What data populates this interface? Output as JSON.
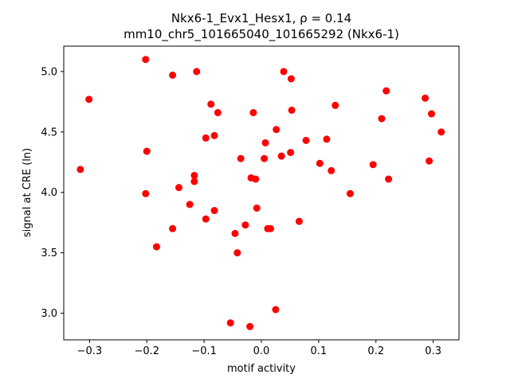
{
  "chart_data": {
    "type": "scatter",
    "title_line1": "Nkx6-1_Evx1_Hesx1, ρ = 0.14",
    "title_line2": "mm10_chr5_101665040_101665292 (Nkx6-1)",
    "xlabel": "motif activity",
    "ylabel": "signal at CRE (ln)",
    "xlim": [
      -0.345,
      0.345
    ],
    "ylim": [
      2.78,
      5.21
    ],
    "xticks": [
      -0.3,
      -0.2,
      -0.1,
      0.0,
      0.1,
      0.2,
      0.3
    ],
    "xtick_labels": [
      "−0.3",
      "−0.2",
      "−0.1",
      "0.0",
      "0.1",
      "0.2",
      "0.3"
    ],
    "yticks": [
      3.0,
      3.5,
      4.0,
      4.5,
      5.0
    ],
    "ytick_labels": [
      "3.0",
      "3.5",
      "4.0",
      "4.5",
      "5.0"
    ],
    "marker_color": "#ff0000",
    "grid": false,
    "points": [
      {
        "x": -0.316,
        "y": 4.19
      },
      {
        "x": -0.301,
        "y": 4.77
      },
      {
        "x": -0.202,
        "y": 5.1
      },
      {
        "x": -0.2,
        "y": 4.34
      },
      {
        "x": -0.202,
        "y": 3.99
      },
      {
        "x": -0.183,
        "y": 3.55
      },
      {
        "x": -0.155,
        "y": 4.97
      },
      {
        "x": -0.155,
        "y": 3.7
      },
      {
        "x": -0.144,
        "y": 4.04
      },
      {
        "x": -0.125,
        "y": 3.9
      },
      {
        "x": -0.117,
        "y": 4.14
      },
      {
        "x": -0.117,
        "y": 4.09
      },
      {
        "x": -0.113,
        "y": 5.0
      },
      {
        "x": -0.097,
        "y": 4.45
      },
      {
        "x": -0.097,
        "y": 3.78
      },
      {
        "x": -0.088,
        "y": 4.73
      },
      {
        "x": -0.082,
        "y": 4.47
      },
      {
        "x": -0.082,
        "y": 3.85
      },
      {
        "x": -0.076,
        "y": 4.66
      },
      {
        "x": -0.054,
        "y": 2.92
      },
      {
        "x": -0.046,
        "y": 3.66
      },
      {
        "x": -0.042,
        "y": 3.5
      },
      {
        "x": -0.036,
        "y": 4.28
      },
      {
        "x": -0.028,
        "y": 3.73
      },
      {
        "x": -0.02,
        "y": 2.89
      },
      {
        "x": -0.018,
        "y": 4.12
      },
      {
        "x": -0.014,
        "y": 4.66
      },
      {
        "x": -0.01,
        "y": 4.11
      },
      {
        "x": -0.008,
        "y": 3.87
      },
      {
        "x": 0.005,
        "y": 4.28
      },
      {
        "x": 0.007,
        "y": 4.41
      },
      {
        "x": 0.011,
        "y": 3.7
      },
      {
        "x": 0.016,
        "y": 3.7
      },
      {
        "x": 0.025,
        "y": 3.03
      },
      {
        "x": 0.026,
        "y": 4.52
      },
      {
        "x": 0.035,
        "y": 4.3
      },
      {
        "x": 0.039,
        "y": 5.0
      },
      {
        "x": 0.051,
        "y": 4.33
      },
      {
        "x": 0.052,
        "y": 4.94
      },
      {
        "x": 0.053,
        "y": 4.68
      },
      {
        "x": 0.066,
        "y": 3.76
      },
      {
        "x": 0.078,
        "y": 4.43
      },
      {
        "x": 0.102,
        "y": 4.24
      },
      {
        "x": 0.114,
        "y": 4.44
      },
      {
        "x": 0.122,
        "y": 4.18
      },
      {
        "x": 0.129,
        "y": 4.72
      },
      {
        "x": 0.155,
        "y": 3.99
      },
      {
        "x": 0.195,
        "y": 4.23
      },
      {
        "x": 0.21,
        "y": 4.61
      },
      {
        "x": 0.218,
        "y": 4.84
      },
      {
        "x": 0.222,
        "y": 4.11
      },
      {
        "x": 0.286,
        "y": 4.78
      },
      {
        "x": 0.293,
        "y": 4.26
      },
      {
        "x": 0.297,
        "y": 4.65
      },
      {
        "x": 0.314,
        "y": 4.5
      }
    ]
  }
}
